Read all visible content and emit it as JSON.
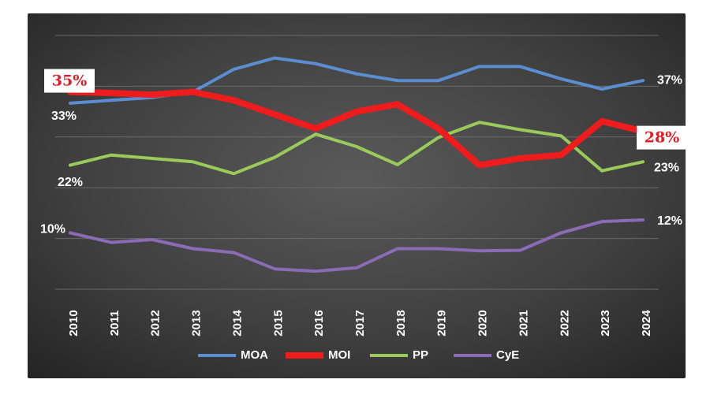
{
  "chart_data": {
    "type": "line",
    "categories": [
      "2010",
      "2011",
      "2012",
      "2013",
      "2014",
      "2015",
      "2016",
      "2017",
      "2018",
      "2019",
      "2020",
      "2021",
      "2022",
      "2023",
      "2024"
    ],
    "ylim": [
      0,
      45
    ],
    "grid": true,
    "legend_position": "bottom",
    "series": [
      {
        "name": "MOA",
        "color": "#5b8ed1",
        "stroke_width": 4,
        "values": [
          33,
          33.5,
          34,
          35,
          39,
          41,
          40,
          38.2,
          37,
          37,
          39.5,
          39.5,
          37.3,
          35.5,
          37
        ]
      },
      {
        "name": "MOI",
        "color": "#ee1c1c",
        "stroke_width": 8,
        "values": [
          35,
          34.8,
          34.5,
          35,
          33.5,
          31,
          28.5,
          31.5,
          32.8,
          28.5,
          22,
          23.2,
          23.8,
          29.8,
          28
        ]
      },
      {
        "name": "PP",
        "color": "#9acb5a",
        "stroke_width": 4,
        "values": [
          22,
          23.8,
          23.2,
          22.6,
          20.5,
          23.4,
          27.5,
          25.3,
          22.1,
          26.9,
          29.6,
          28.3,
          27.2,
          21,
          22.6
        ]
      },
      {
        "name": "CyE",
        "color": "#8b6bb5",
        "stroke_width": 4,
        "values": [
          10,
          8.3,
          8.8,
          7.2,
          6.5,
          3.6,
          3.2,
          3.8,
          7.2,
          7.2,
          6.8,
          6.9,
          10,
          12,
          12.3
        ]
      }
    ],
    "annotations": [
      {
        "series": "MOI",
        "year": "2010",
        "text": "35%",
        "style": "red-box"
      },
      {
        "series": "MOA",
        "year": "2010",
        "text": "33%",
        "style": "white"
      },
      {
        "series": "PP",
        "year": "2010",
        "text": "22%",
        "style": "white"
      },
      {
        "series": "CyE",
        "year": "2010",
        "text": "10%",
        "style": "white"
      },
      {
        "series": "MOA",
        "year": "2024",
        "text": "37%",
        "style": "white"
      },
      {
        "series": "MOI",
        "year": "2024",
        "text": "28%",
        "style": "red-box"
      },
      {
        "series": "PP",
        "year": "2024",
        "text": "23%",
        "style": "white"
      },
      {
        "series": "CyE",
        "year": "2024",
        "text": "12%",
        "style": "white"
      }
    ]
  }
}
